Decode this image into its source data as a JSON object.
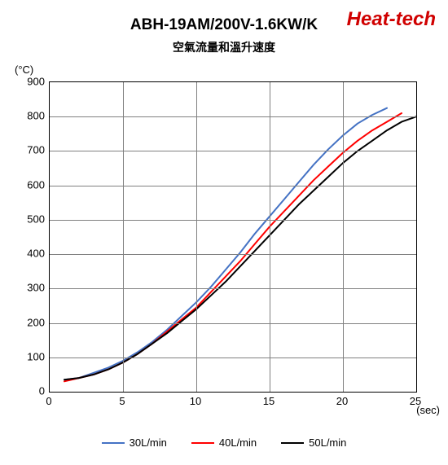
{
  "chart": {
    "type": "line",
    "title": "ABH-19AM/200V-1.6KW/K",
    "title_fontsize": 19,
    "subtitle": "空氣流量和溫升速度",
    "subtitle_fontsize": 14,
    "brand": "Heat-tech",
    "brand_color": "#d00000",
    "brand_fontsize": 24,
    "y_unit_label": "(°C)",
    "x_unit_label": "(sec)",
    "label_fontsize": 13,
    "tick_fontsize": 13,
    "background_color": "#ffffff",
    "grid_color": "#808080",
    "axis_color": "#000000",
    "xlim": [
      0,
      25
    ],
    "ylim": [
      0,
      900
    ],
    "xtick_step": 5,
    "ytick_step": 100,
    "xticks": [
      0,
      5,
      10,
      15,
      20,
      25
    ],
    "yticks": [
      0,
      100,
      200,
      300,
      400,
      500,
      600,
      700,
      800,
      900
    ],
    "line_width": 2,
    "series": [
      {
        "name": "30L/min",
        "color": "#4472c4",
        "x": [
          1,
          2,
          3,
          4,
          5,
          6,
          7,
          8,
          9,
          10,
          11,
          12,
          13,
          14,
          15,
          16,
          17,
          18,
          19,
          20,
          21,
          22,
          23
        ],
        "y": [
          35,
          40,
          55,
          70,
          90,
          115,
          145,
          180,
          220,
          260,
          305,
          355,
          405,
          460,
          510,
          560,
          610,
          660,
          705,
          745,
          780,
          805,
          825
        ]
      },
      {
        "name": "40L/min",
        "color": "#ff0000",
        "x": [
          1,
          2,
          3,
          4,
          5,
          6,
          7,
          8,
          9,
          10,
          11,
          12,
          13,
          14,
          15,
          16,
          17,
          18,
          19,
          20,
          21,
          22,
          23,
          24
        ],
        "y": [
          30,
          40,
          50,
          65,
          85,
          110,
          140,
          175,
          210,
          245,
          290,
          335,
          380,
          430,
          480,
          525,
          570,
          615,
          655,
          695,
          730,
          760,
          785,
          810
        ]
      },
      {
        "name": "50L/min",
        "color": "#000000",
        "x": [
          1,
          2,
          3,
          4,
          5,
          6,
          7,
          8,
          9,
          10,
          11,
          12,
          13,
          14,
          15,
          16,
          17,
          18,
          19,
          20,
          21,
          22,
          23,
          24,
          25
        ],
        "y": [
          35,
          40,
          50,
          65,
          85,
          110,
          140,
          170,
          205,
          240,
          280,
          320,
          365,
          410,
          455,
          500,
          545,
          585,
          625,
          665,
          700,
          730,
          760,
          785,
          800
        ]
      }
    ],
    "legend": {
      "position": "bottom-center",
      "fontsize": 13
    }
  }
}
